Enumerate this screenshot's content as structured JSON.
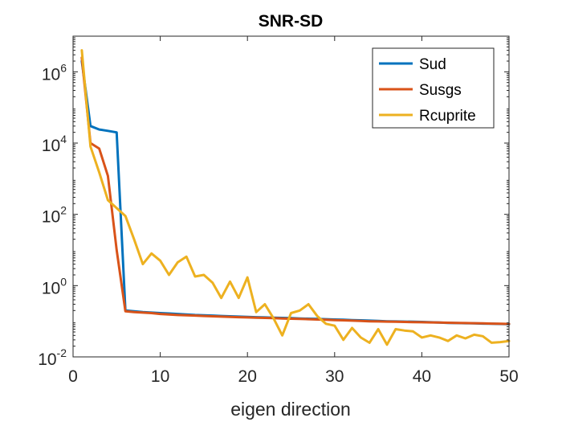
{
  "chart_data": {
    "type": "line",
    "title": "SNR-SD",
    "xlabel": "eigen direction",
    "ylabel": "",
    "xlim": [
      0,
      50
    ],
    "ylim": [
      0.01,
      10000000
    ],
    "yscale": "log",
    "grid": false,
    "legend_position": "top-right",
    "x_ticks": [
      0,
      10,
      20,
      30,
      40,
      50
    ],
    "x_tick_labels": [
      "0",
      "10",
      "20",
      "30",
      "40",
      "50"
    ],
    "y_ticks": [
      0.01,
      1,
      100,
      10000,
      1000000
    ],
    "y_tick_labels": [
      {
        "base": "10",
        "exp": "-2"
      },
      {
        "base": "10",
        "exp": "0"
      },
      {
        "base": "10",
        "exp": "2"
      },
      {
        "base": "10",
        "exp": "4"
      },
      {
        "base": "10",
        "exp": "6"
      }
    ],
    "x": [
      1,
      2,
      3,
      4,
      5,
      6,
      7,
      8,
      9,
      10,
      11,
      12,
      13,
      14,
      15,
      16,
      17,
      18,
      19,
      20,
      21,
      22,
      23,
      24,
      25,
      26,
      27,
      28,
      29,
      30,
      31,
      32,
      33,
      34,
      35,
      36,
      37,
      38,
      39,
      40,
      41,
      42,
      43,
      44,
      45,
      46,
      47,
      48,
      49,
      50
    ],
    "series": [
      {
        "name": "Sud",
        "color": "#0072BD",
        "values": [
          2000000,
          30000,
          24000,
          22000,
          20000,
          0.2,
          0.19,
          0.18,
          0.175,
          0.17,
          0.165,
          0.16,
          0.155,
          0.15,
          0.147,
          0.144,
          0.141,
          0.138,
          0.135,
          0.132,
          0.13,
          0.128,
          0.126,
          0.124,
          0.122,
          0.12,
          0.118,
          0.116,
          0.114,
          0.112,
          0.11,
          0.108,
          0.106,
          0.104,
          0.102,
          0.1,
          0.099,
          0.098,
          0.097,
          0.096,
          0.094,
          0.092,
          0.09,
          0.089,
          0.088,
          0.087,
          0.086,
          0.085,
          0.084,
          0.083
        ]
      },
      {
        "name": "Susgs",
        "color": "#D95319",
        "values": [
          2500000,
          10000,
          7000,
          1200,
          10,
          0.19,
          0.18,
          0.175,
          0.17,
          0.16,
          0.155,
          0.15,
          0.147,
          0.144,
          0.141,
          0.138,
          0.135,
          0.132,
          0.13,
          0.128,
          0.126,
          0.124,
          0.122,
          0.12,
          0.118,
          0.116,
          0.114,
          0.112,
          0.11,
          0.108,
          0.106,
          0.104,
          0.102,
          0.1,
          0.099,
          0.098,
          0.097,
          0.096,
          0.095,
          0.094,
          0.093,
          0.092,
          0.091,
          0.09,
          0.089,
          0.088,
          0.087,
          0.086,
          0.085,
          0.084
        ]
      },
      {
        "name": "Rcuprite",
        "color": "#EDB120",
        "values": [
          4000000,
          8000,
          1500,
          250,
          150,
          90,
          20,
          4,
          8,
          5,
          2,
          4.5,
          6.5,
          1.8,
          2,
          1.2,
          0.45,
          1.3,
          0.45,
          1.7,
          0.18,
          0.3,
          0.12,
          0.04,
          0.17,
          0.2,
          0.3,
          0.14,
          0.085,
          0.075,
          0.03,
          0.065,
          0.035,
          0.025,
          0.06,
          0.022,
          0.06,
          0.055,
          0.052,
          0.035,
          0.04,
          0.035,
          0.028,
          0.04,
          0.033,
          0.042,
          0.038,
          0.025,
          0.026,
          0.028
        ]
      }
    ]
  }
}
